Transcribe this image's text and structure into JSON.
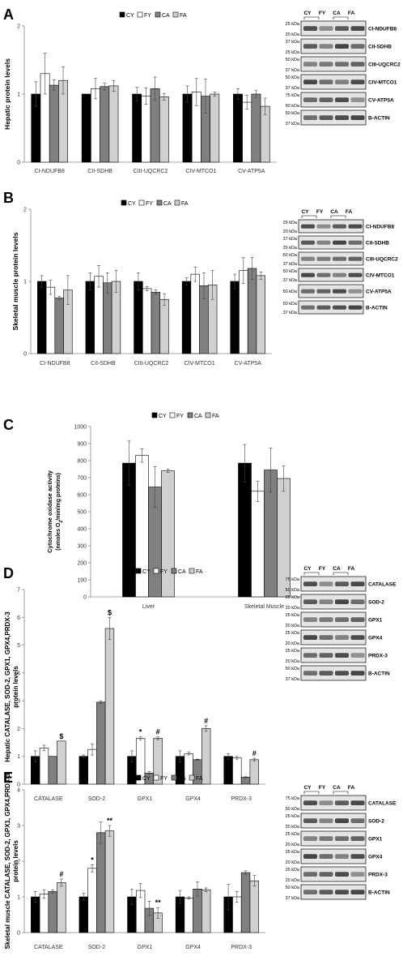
{
  "colors": {
    "CY": "#000000",
    "FY": "#ffffff",
    "CA": "#808080",
    "FA": "#d0d0d0"
  },
  "legend_labels": [
    "CY",
    "FY",
    "CA",
    "FA"
  ],
  "chart_data": [
    {
      "panel": "A",
      "type": "bar",
      "ylabel": "Hepatic protein levels",
      "ylim": [
        0,
        2
      ],
      "ticks": [
        0,
        1,
        2
      ],
      "categories": [
        "CI-NDUFB8",
        "CII-SDHB",
        "CIII-UQCRC2",
        "CIV-MTCO1",
        "CV-ATP5A"
      ],
      "series": [
        {
          "name": "CY",
          "values": [
            1.0,
            1.0,
            1.0,
            1.0,
            1.0
          ],
          "errors": [
            0.18,
            0.0,
            0.1,
            0.12,
            0.08
          ]
        },
        {
          "name": "FY",
          "values": [
            1.3,
            1.08,
            0.97,
            1.03,
            0.88
          ],
          "errors": [
            0.3,
            0.15,
            0.12,
            0.2,
            0.1
          ]
        },
        {
          "name": "CA",
          "values": [
            1.13,
            1.11,
            1.08,
            0.97,
            1.0
          ],
          "errors": [
            0.08,
            0.05,
            0.17,
            0.25,
            0.05
          ]
        },
        {
          "name": "FA",
          "values": [
            1.2,
            1.12,
            0.96,
            1.0,
            0.82
          ],
          "errors": [
            0.2,
            0.08,
            0.05,
            0.03,
            0.12
          ]
        }
      ],
      "annotations": [
        [],
        [],
        [],
        [],
        []
      ],
      "blot": {
        "header": [
          "CY",
          "FY",
          "CA",
          "FA"
        ],
        "rows": [
          {
            "kda": [
              "25 kDa",
              "20 kDa"
            ],
            "label": "CI-NDUFB8"
          },
          {
            "kda": [
              "37 kDa",
              "25 kDa"
            ],
            "label": "CII-SDHB"
          },
          {
            "kda": [
              "50 kDa",
              "37 kDa"
            ],
            "label": "CIII-UQCRC2"
          },
          {
            "kda": [
              "50 kDa",
              "37 kDa"
            ],
            "label": "CIV-MTCO1"
          },
          {
            "kda": [
              "75 kDa",
              "50 kDa"
            ],
            "label": "CV-ATP5A"
          },
          {
            "kda": [
              "50 kDa",
              "37 kDa"
            ],
            "label": "B-ACTIN"
          }
        ]
      }
    },
    {
      "panel": "B",
      "type": "bar",
      "ylabel": "Skeletal muscle protein levels",
      "ylim": [
        0,
        2
      ],
      "ticks": [
        0,
        1,
        2
      ],
      "categories": [
        "CI-NDUFB8",
        "CII-SDHB",
        "CIII-UQCRC2",
        "CIV-MTCO1",
        "CV-ATP5A"
      ],
      "series": [
        {
          "name": "CY",
          "values": [
            1.0,
            1.0,
            1.0,
            1.0,
            1.0
          ],
          "errors": [
            0.08,
            0.12,
            0.12,
            0.05,
            0.1
          ]
        },
        {
          "name": "FY",
          "values": [
            0.92,
            1.07,
            0.9,
            1.1,
            1.15
          ],
          "errors": [
            0.1,
            0.15,
            0.03,
            0.1,
            0.18
          ]
        },
        {
          "name": "CA",
          "values": [
            0.77,
            0.98,
            0.85,
            0.94,
            1.18
          ],
          "errors": [
            0.02,
            0.14,
            0.03,
            0.18,
            0.15
          ]
        },
        {
          "name": "FA",
          "values": [
            0.88,
            1.0,
            0.75,
            0.95,
            1.08
          ],
          "errors": [
            0.2,
            0.15,
            0.08,
            0.2,
            0.05
          ]
        }
      ],
      "annotations": [
        [],
        [],
        [],
        [],
        []
      ],
      "blot": {
        "header": [
          "CY",
          "FY",
          "CA",
          "FA"
        ],
        "rows": [
          {
            "kda": [
              "25 kDa",
              "20 kDa"
            ],
            "label": "CI-NDUFB8"
          },
          {
            "kda": [
              "37 kDa",
              "25 kDa"
            ],
            "label": "CII-SDHB"
          },
          {
            "kda": [
              "50 kDa",
              "37 kDa"
            ],
            "label": "CIII-UQCRC2"
          },
          {
            "kda": [
              "50 kDa",
              "37 kDa"
            ],
            "label": "CIV-MTCO1"
          },
          {
            "kda": [
              "50 kDa"
            ],
            "label": "CV-ATP5A"
          },
          {
            "kda": [
              "50 kDa",
              "37 kDa"
            ],
            "label": "B-ACTIN"
          }
        ]
      }
    },
    {
      "panel": "C",
      "type": "bar",
      "ylabel": [
        "Cytochrome oxidase activity",
        "(nmoles O",
        "2",
        "/min/mg proteins)"
      ],
      "ylim": [
        0,
        1000
      ],
      "ticks": [
        0,
        100,
        200,
        300,
        400,
        500,
        600,
        700,
        800,
        900,
        1000
      ],
      "categories": [
        "Liver",
        "Skeletal Muscle"
      ],
      "series": [
        {
          "name": "CY",
          "values": [
            785,
            785
          ],
          "errors": [
            130,
            110
          ]
        },
        {
          "name": "FY",
          "values": [
            830,
            620
          ],
          "errors": [
            40,
            60
          ]
        },
        {
          "name": "CA",
          "values": [
            645,
            745
          ],
          "errors": [
            120,
            130
          ]
        },
        {
          "name": "FA",
          "values": [
            740,
            695
          ],
          "errors": [
            10,
            75
          ]
        }
      ],
      "annotations": [
        [],
        []
      ]
    },
    {
      "panel": "D",
      "type": "bar",
      "ylabel": [
        "Hepatic CATALASE, SOD-2, GPX1, GPX4,PRDX-3",
        "protein levels"
      ],
      "ylim": [
        0,
        7
      ],
      "ticks": [
        0,
        1,
        2,
        3,
        4,
        5,
        6,
        7
      ],
      "categories": [
        "CATALASE",
        "SOD-2",
        "GPX1",
        "GPX4",
        "PRDX-3"
      ],
      "series": [
        {
          "name": "CY",
          "values": [
            1.0,
            1.0,
            1.0,
            1.0,
            1.0
          ],
          "errors": [
            0.2,
            0.05,
            0.2,
            0.2,
            0.1
          ]
        },
        {
          "name": "FY",
          "values": [
            1.3,
            1.25,
            1.65,
            1.1,
            0.95
          ],
          "errors": [
            0.1,
            0.2,
            0.05,
            0.05,
            0.05
          ]
        },
        {
          "name": "CA",
          "values": [
            1.0,
            2.95,
            0.4,
            0.88,
            0.25
          ],
          "errors": [
            0.0,
            0.05,
            0.05,
            0.02,
            0.02
          ]
        },
        {
          "name": "FA",
          "values": [
            1.55,
            5.6,
            1.65,
            2.0,
            0.88
          ],
          "errors": [
            0.0,
            0.4,
            0.05,
            0.1,
            0.05
          ]
        }
      ],
      "annotations": [
        [
          {
            "series": "FA",
            "text": "$"
          }
        ],
        [
          {
            "series": "FA",
            "text": "$"
          }
        ],
        [
          {
            "series": "FY",
            "text": "*"
          },
          {
            "series": "FA",
            "text": "#"
          }
        ],
        [
          {
            "series": "FA",
            "text": "#"
          }
        ],
        [
          {
            "series": "FA",
            "text": "#"
          }
        ]
      ],
      "blot": {
        "header": [
          "CY",
          "FY",
          "CA",
          "FA"
        ],
        "rows": [
          {
            "kda": [
              "75 kDa",
              "50 kDa"
            ],
            "label": "CATALASE"
          },
          {
            "kda": [
              "25 kDa",
              "20 kDa"
            ],
            "label": "SOD-2"
          },
          {
            "kda": [
              "25 kDa",
              "20 kDa"
            ],
            "label": "GPX1"
          },
          {
            "kda": [
              "25 kDa",
              "20 kDa"
            ],
            "label": "GPX4"
          },
          {
            "kda": [
              "25 kDa",
              "20 kDa"
            ],
            "label": "PRDX-3"
          },
          {
            "kda": [
              "50 kDa",
              "37 kDa"
            ],
            "label": "B-ACTIN"
          }
        ]
      }
    },
    {
      "panel": "E",
      "type": "bar",
      "ylabel": [
        "Skeletal muscle CATALASE, SOD-2, GPX1, GPX4,PRDX-3",
        "protein levels"
      ],
      "ylim": [
        0,
        4
      ],
      "ticks": [
        0,
        1,
        2,
        3,
        4
      ],
      "categories": [
        "CATALASE",
        "SOD-2",
        "GPX1",
        "GPX4",
        "PRDX-3"
      ],
      "series": [
        {
          "name": "CY",
          "values": [
            1.0,
            1.0,
            1.0,
            1.0,
            1.0
          ],
          "errors": [
            0.15,
            0.1,
            0.22,
            0.18,
            0.35
          ]
        },
        {
          "name": "FY",
          "values": [
            1.08,
            1.8,
            1.18,
            0.97,
            1.0
          ],
          "errors": [
            0.12,
            0.1,
            0.2,
            0.03,
            0.15
          ]
        },
        {
          "name": "CA",
          "values": [
            1.15,
            2.8,
            0.68,
            1.22,
            1.68
          ],
          "errors": [
            0.05,
            0.3,
            0.2,
            0.2,
            0.05
          ]
        },
        {
          "name": "FA",
          "values": [
            1.4,
            2.85,
            0.55,
            1.2,
            1.45
          ],
          "errors": [
            0.1,
            0.15,
            0.15,
            0.05,
            0.15
          ]
        }
      ],
      "annotations": [
        [
          {
            "series": "FA",
            "text": "#"
          }
        ],
        [
          {
            "series": "FY",
            "text": "*"
          },
          {
            "series": "FA",
            "text": "**"
          }
        ],
        [
          {
            "series": "FA",
            "text": "**"
          }
        ],
        [],
        []
      ],
      "blot": {
        "header": [
          "CY",
          "FY",
          "CA",
          "FA"
        ],
        "rows": [
          {
            "kda": [
              "75 kDa",
              "50 kDa"
            ],
            "label": "CATALASE"
          },
          {
            "kda": [
              "25 kDa",
              "20 kDa"
            ],
            "label": "SOD-2"
          },
          {
            "kda": [
              "25 kDa",
              "20 kDa"
            ],
            "label": "GPX1"
          },
          {
            "kda": [
              "25 kDa",
              "20 kDa"
            ],
            "label": "GPX4"
          },
          {
            "kda": [
              "25 kDa",
              "20 kDa"
            ],
            "label": "PRDX-3"
          },
          {
            "kda": [
              "50 kDa",
              "37 kDa"
            ],
            "label": "B-ACTIN"
          }
        ]
      }
    }
  ]
}
